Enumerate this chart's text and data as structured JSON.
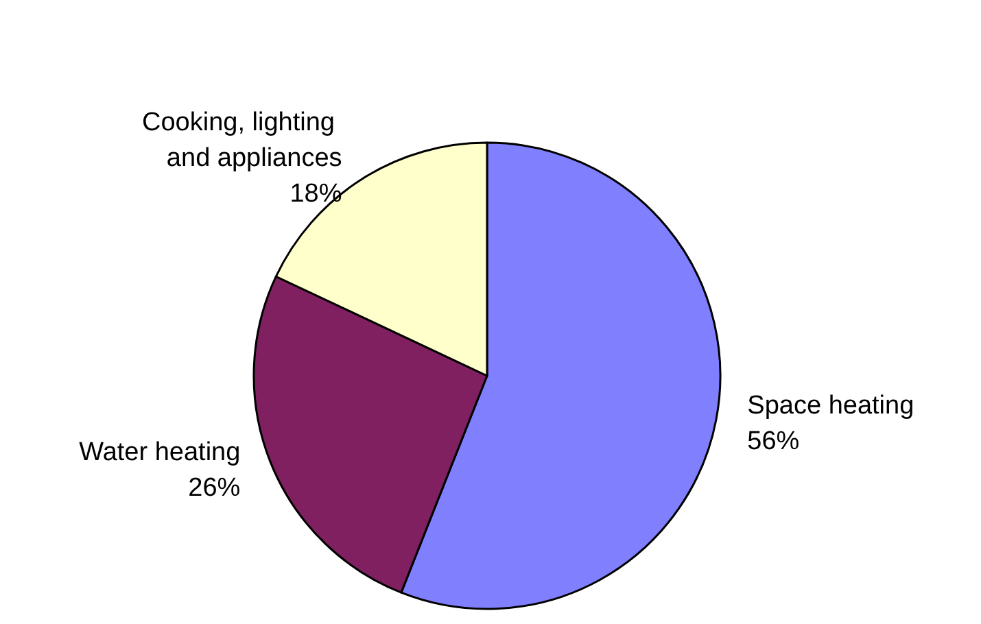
{
  "chart_data": {
    "type": "pie",
    "categories": [
      "Space heating",
      "Water heating",
      "Cooking, lighting and appliances"
    ],
    "values": [
      56,
      26,
      18
    ],
    "colors": [
      "#8080ff",
      "#802060",
      "#ffffcc"
    ],
    "value_labels": [
      "56%",
      "26%",
      "18%"
    ]
  }
}
